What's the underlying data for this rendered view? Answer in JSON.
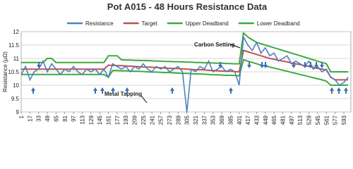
{
  "chart_data": {
    "type": "line",
    "title": "Pot A015 - 48 Hours Resistance Data",
    "y_label": "Resistance (μΩ)",
    "annotations": [
      "Carbon Setting",
      "Metal Tapping"
    ],
    "x": [
      1,
      9,
      17,
      25,
      33,
      41,
      49,
      57,
      65,
      73,
      81,
      89,
      97,
      105,
      113,
      121,
      129,
      137,
      145,
      153,
      161,
      169,
      177,
      185,
      193,
      201,
      209,
      217,
      225,
      233,
      241,
      249,
      257,
      265,
      273,
      281,
      289,
      297,
      305,
      313,
      321,
      329,
      337,
      345,
      353,
      361,
      369,
      377,
      385,
      393,
      401,
      409,
      417,
      425,
      433,
      441,
      449,
      457,
      465,
      473,
      481,
      489,
      497,
      505,
      513,
      521,
      529,
      537,
      545,
      553,
      561,
      569,
      577,
      585,
      593,
      601
    ],
    "xlim": [
      1,
      606
    ],
    "xticks": [
      1,
      17,
      33,
      49,
      65,
      81,
      97,
      113,
      129,
      145,
      161,
      177,
      193,
      209,
      225,
      241,
      257,
      273,
      289,
      305,
      321,
      337,
      353,
      369,
      385,
      401,
      417,
      433,
      449,
      465,
      481,
      497,
      513,
      529,
      545,
      561,
      577,
      593
    ],
    "ylim": [
      9,
      12
    ],
    "yticks": [
      9,
      9.5,
      10,
      10.5,
      11,
      11.5,
      12
    ],
    "grid": true,
    "series": [
      {
        "name": "Resistance",
        "color": "#4f81bd",
        "values": [
          10.4,
          10.7,
          10.2,
          10.5,
          10.6,
          10.9,
          10.5,
          10.8,
          10.6,
          10.4,
          10.6,
          10.5,
          10.7,
          10.5,
          10.4,
          10.6,
          10.5,
          10.6,
          10.4,
          10.6,
          10.3,
          10.8,
          10.7,
          10.6,
          10.7,
          10.5,
          10.7,
          10.6,
          10.8,
          10.6,
          10.5,
          10.7,
          10.6,
          10.7,
          10.5,
          10.6,
          10.7,
          10.5,
          9.0,
          10.6,
          10.5,
          10.7,
          10.6,
          10.9,
          10.5,
          10.6,
          10.7,
          10.5,
          10.6,
          10.5,
          10.0,
          11.8,
          11.5,
          11.3,
          11.6,
          11.2,
          11.4,
          11.1,
          11.2,
          10.9,
          11.0,
          11.1,
          10.8,
          10.9,
          10.8,
          10.7,
          10.9,
          10.6,
          10.7,
          10.5,
          10.6,
          10.3,
          10.2,
          10.0,
          10.1,
          10.3
        ]
      },
      {
        "name": "Target",
        "color": "#c0504d",
        "values": [
          10.6,
          10.6,
          10.6,
          10.6,
          10.6,
          10.6,
          10.6,
          10.6,
          10.6,
          10.6,
          10.6,
          10.6,
          10.6,
          10.6,
          10.6,
          10.6,
          10.6,
          10.6,
          10.6,
          10.6,
          10.75,
          10.74,
          10.73,
          10.73,
          10.72,
          10.71,
          10.7,
          10.69,
          10.68,
          10.68,
          10.67,
          10.66,
          10.65,
          10.64,
          10.63,
          10.63,
          10.62,
          10.61,
          10.6,
          10.59,
          10.58,
          10.58,
          10.57,
          10.56,
          10.55,
          10.54,
          10.53,
          10.53,
          10.52,
          10.51,
          10.5,
          11.3,
          11.25,
          11.2,
          11.15,
          11.1,
          11.05,
          11.0,
          10.97,
          10.93,
          10.9,
          10.87,
          10.83,
          10.8,
          10.77,
          10.73,
          10.7,
          10.67,
          10.63,
          10.6,
          10.57,
          10.3,
          10.2,
          10.2,
          10.2,
          10.2
        ]
      },
      {
        "name": "Upper Deadband",
        "color": "#3daa3d",
        "values": [
          10.85,
          10.85,
          10.85,
          10.85,
          10.85,
          10.85,
          11.0,
          11.0,
          10.85,
          10.85,
          10.85,
          10.85,
          10.85,
          10.85,
          10.85,
          10.85,
          10.85,
          10.85,
          10.85,
          10.85,
          11.1,
          11.1,
          11.1,
          10.95,
          10.94,
          10.94,
          10.93,
          10.93,
          10.92,
          10.92,
          10.91,
          10.9,
          10.9,
          10.89,
          10.89,
          10.88,
          10.88,
          10.87,
          10.86,
          10.86,
          10.85,
          10.85,
          10.84,
          10.84,
          10.83,
          10.82,
          10.82,
          10.81,
          10.81,
          10.8,
          10.8,
          11.95,
          11.8,
          11.7,
          11.6,
          11.55,
          11.5,
          11.45,
          11.4,
          11.35,
          11.3,
          11.25,
          11.2,
          11.15,
          11.1,
          11.05,
          11.0,
          10.95,
          10.9,
          10.85,
          10.8,
          10.5,
          10.5,
          10.5,
          10.5,
          10.5
        ]
      },
      {
        "name": "Lower Deadband",
        "color": "#3daa3d",
        "values": [
          10.4,
          10.4,
          10.4,
          10.4,
          10.4,
          10.4,
          10.4,
          10.4,
          10.4,
          10.4,
          10.4,
          10.4,
          10.4,
          10.4,
          10.4,
          10.4,
          10.4,
          10.4,
          10.4,
          10.4,
          10.3,
          10.55,
          10.55,
          10.54,
          10.54,
          10.53,
          10.52,
          10.52,
          10.51,
          10.5,
          10.49,
          10.49,
          10.48,
          10.47,
          10.47,
          10.46,
          10.45,
          10.44,
          10.44,
          10.43,
          10.42,
          10.42,
          10.41,
          10.4,
          10.39,
          10.39,
          10.38,
          10.37,
          10.37,
          10.36,
          10.35,
          10.95,
          10.9,
          10.85,
          10.8,
          10.75,
          10.72,
          10.68,
          10.64,
          10.6,
          10.56,
          10.52,
          10.48,
          10.44,
          10.4,
          10.36,
          10.32,
          10.28,
          10.24,
          10.2,
          10.15,
          10.0,
          10.0,
          10.0,
          10.0,
          10.0
        ]
      }
    ]
  }
}
